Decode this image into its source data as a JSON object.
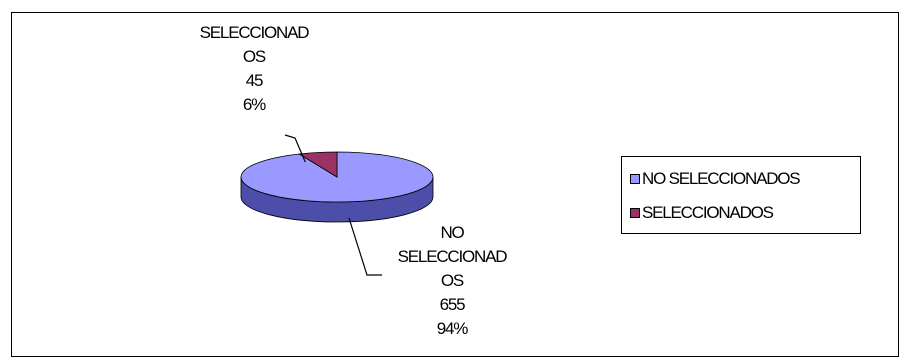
{
  "chart_data": {
    "type": "pie",
    "title": "",
    "series": [
      {
        "name": "",
        "slices": [
          {
            "label": "NO SELECCIONADOS",
            "value": 655,
            "percent": 94,
            "color": "#9999FF",
            "side_color": "#4D4DAA"
          },
          {
            "label": "SELECCIONADOS",
            "value": 45,
            "percent": 6,
            "color": "#993366",
            "side_color": "#5A1A3A"
          }
        ]
      }
    ],
    "legend": {
      "placement": "right",
      "entries": [
        "NO SELECCIONADOS",
        "SELECCIONADOS"
      ]
    },
    "data_labels": {
      "selected": {
        "line1": "SELECCIONAD",
        "line2": "OS",
        "value": "45",
        "percent": "6%"
      },
      "not_selected": {
        "line1": "NO",
        "line2": "SELECCIONAD",
        "line3": "OS",
        "value": "655",
        "percent": "94%"
      }
    }
  }
}
